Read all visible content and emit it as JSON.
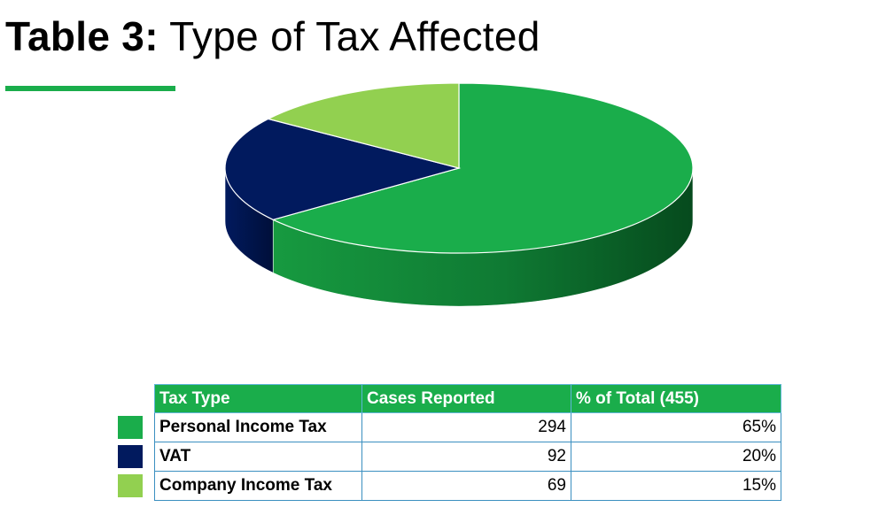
{
  "title": {
    "prefix": "Table 3:",
    "text": "Type of Tax Affected"
  },
  "colors": {
    "accent": "#1aad4b",
    "personal": "#1aad4b",
    "vat": "#011a5e",
    "company": "#92d050",
    "table_header": "#1aad4b"
  },
  "chart_data": {
    "type": "pie",
    "categories": [
      "Personal Income Tax",
      "VAT",
      "Company Income Tax"
    ],
    "values": [
      294,
      92,
      69
    ],
    "percent": [
      65,
      20,
      15
    ],
    "style": "3d"
  },
  "table": {
    "headers": [
      "Tax Type",
      "Cases Reported",
      "% of Total (455)"
    ],
    "rows": [
      {
        "type": "Personal Income Tax",
        "cases": "294",
        "pct": "65%"
      },
      {
        "type": "VAT",
        "cases": "92",
        "pct": "20%"
      },
      {
        "type": "Company Income Tax",
        "cases": "69",
        "pct": "15%"
      }
    ]
  }
}
